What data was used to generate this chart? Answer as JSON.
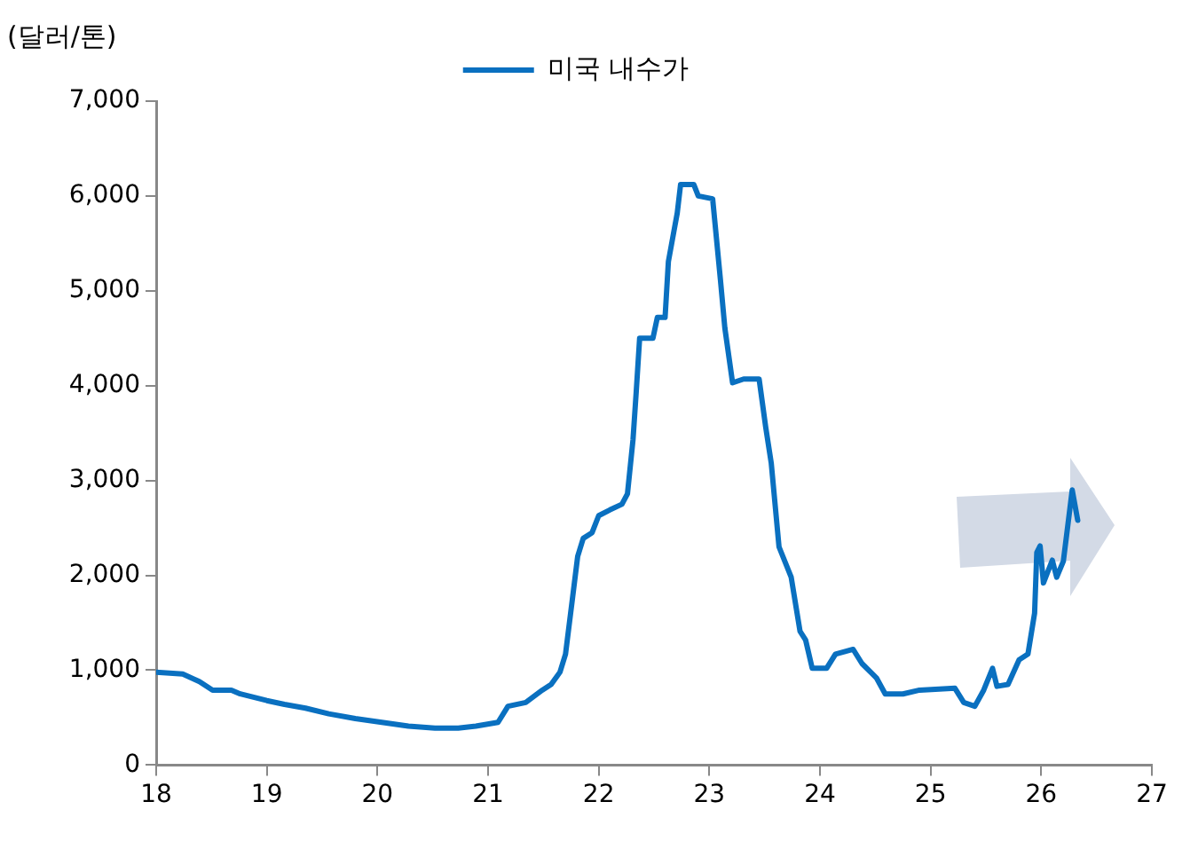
{
  "chart_data": {
    "type": "line",
    "ylabel": "(달러/톤)",
    "legend": "top",
    "marker": "none",
    "line_style": "solid",
    "xlim": [
      18,
      27
    ],
    "xticks": [
      18,
      19,
      20,
      21,
      22,
      23,
      24,
      25,
      26,
      27
    ],
    "ylim": [
      0,
      7000
    ],
    "yticks": [
      0,
      {
        "value": 1000,
        "label": "1,000"
      },
      {
        "value": 2000,
        "label": "2,000"
      },
      {
        "value": 3000,
        "label": "3,000"
      },
      {
        "value": 4000,
        "label": "4,000"
      },
      {
        "value": 5000,
        "label": "5,000"
      },
      {
        "value": 6000,
        "label": "6,000"
      },
      {
        "value": 7000,
        "label": "7,000"
      }
    ],
    "x": [
      18.0,
      18.24,
      18.39,
      18.51,
      18.68,
      18.76,
      19.0,
      19.16,
      19.35,
      19.56,
      19.8,
      20.04,
      20.28,
      20.52,
      20.73,
      20.89,
      21.09,
      21.18,
      21.34,
      21.49,
      21.57,
      21.65,
      21.7,
      21.76,
      21.81,
      21.86,
      21.94,
      22.0,
      22.1,
      22.21,
      22.26,
      22.31,
      22.34,
      22.37,
      22.49,
      22.53,
      22.6,
      22.63,
      22.68,
      22.71,
      22.74,
      22.86,
      22.9,
      23.03,
      23.1,
      23.14,
      23.21,
      23.31,
      23.45,
      23.51,
      23.56,
      23.63,
      23.74,
      23.82,
      23.87,
      23.93,
      24.06,
      24.14,
      24.3,
      24.38,
      24.51,
      24.59,
      24.75,
      24.9,
      25.22,
      25.3,
      25.4,
      25.48,
      25.56,
      25.6,
      25.7,
      25.8,
      25.88,
      25.94,
      25.96,
      25.99,
      26.02,
      26.1,
      26.14,
      26.2,
      26.23,
      26.28,
      26.33
    ],
    "series": [
      {
        "name": "미국 내수가",
        "color": "#0a70c0",
        "values": [
          980,
          960,
          880,
          790,
          790,
          750,
          680,
          640,
          600,
          540,
          490,
          450,
          410,
          390,
          390,
          410,
          450,
          620,
          660,
          790,
          850,
          980,
          1170,
          1730,
          2200,
          2390,
          2450,
          2630,
          2690,
          2750,
          2860,
          3430,
          3950,
          4500,
          4500,
          4720,
          4720,
          5310,
          5630,
          5820,
          6120,
          6120,
          6000,
          5970,
          5120,
          4610,
          4030,
          4070,
          4070,
          3560,
          3180,
          2300,
          1980,
          1410,
          1320,
          1020,
          1020,
          1170,
          1220,
          1070,
          920,
          750,
          750,
          790,
          810,
          660,
          620,
          790,
          1020,
          830,
          850,
          1110,
          1170,
          1600,
          2240,
          2310,
          1920,
          2160,
          1980,
          2150,
          2430,
          2900,
          2580
        ]
      }
    ]
  }
}
